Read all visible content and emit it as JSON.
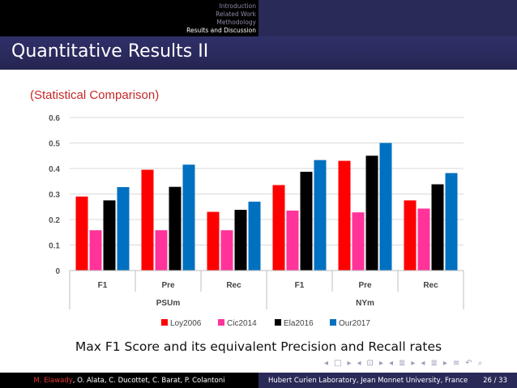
{
  "nav": {
    "items": [
      "Introduction",
      "Related Work",
      "Methodology",
      "Results and Discussion"
    ],
    "active_index": 3
  },
  "slide": {
    "title": "Quantitative Results II",
    "subtitle": "(Statistical Comparison)",
    "caption": "Max F1 Score and its equivalent Precision and Recall rates"
  },
  "chart_data": {
    "type": "bar",
    "groups": [
      "PSUm",
      "NYm"
    ],
    "categories": [
      "F1",
      "Pre",
      "Rec",
      "F1",
      "Pre",
      "Rec"
    ],
    "yticks": [
      "0",
      "0.1",
      "0.2",
      "0.3",
      "0.4",
      "0.5",
      "0.6"
    ],
    "ylim": [
      0,
      0.6
    ],
    "grid": true,
    "legend_position": "bottom",
    "series": [
      {
        "name": "Loy2006",
        "color": "#ff0000",
        "values": [
          0.29,
          0.395,
          0.23,
          0.335,
          0.43,
          0.275
        ]
      },
      {
        "name": "Cic2014",
        "color": "#ff3399",
        "values": [
          0.158,
          0.158,
          0.158,
          0.235,
          0.228,
          0.243
        ]
      },
      {
        "name": "Ela2016",
        "color": "#000000",
        "values": [
          0.275,
          0.328,
          0.238,
          0.387,
          0.45,
          0.338
        ]
      },
      {
        "name": "Our2017",
        "color": "#0070c0",
        "values": [
          0.327,
          0.415,
          0.27,
          0.433,
          0.5,
          0.382
        ]
      }
    ]
  },
  "footer": {
    "authors_highlight": "M. Elawady",
    "authors_rest": ", O. Alata, C. Ducottet, C. Barat, P. Colantoni",
    "institution": "Hubert Curien Laboratory, Jean Monnet University, France",
    "page": "26 / 33"
  },
  "navigation_symbols": [
    "◂",
    "□",
    "▸",
    "◂",
    "⊡",
    "▸",
    "◂",
    "≣",
    "▸",
    "◂",
    "≣",
    "▸",
    "≡",
    "↶",
    "⌕"
  ]
}
